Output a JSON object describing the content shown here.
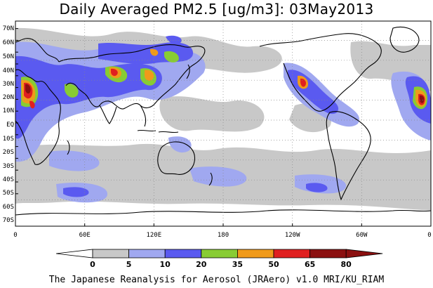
{
  "title": "Daily Averaged PM2.5 [ug/m3]: 03May2013",
  "credit": "The Japanese Reanalysis for Aerosol (JRAero) v1.0 MRI/KU_RIAM",
  "lat_labels": [
    "70N",
    "60N",
    "50N",
    "40N",
    "30N",
    "20N",
    "10N",
    "EQ",
    "10S",
    "20S",
    "30S",
    "40S",
    "50S",
    "60S",
    "70S"
  ],
  "lon_labels": [
    "0",
    "60E",
    "120E",
    "180",
    "120W",
    "60W",
    "0"
  ],
  "colorbar": {
    "levels": [
      "0",
      "5",
      "10",
      "20",
      "35",
      "50",
      "65",
      "80"
    ],
    "colors": [
      "#ffffff",
      "#c8c8c8",
      "#a0a8f0",
      "#5a5af0",
      "#88cc33",
      "#f09a1a",
      "#e02020",
      "#8b1010"
    ]
  }
}
